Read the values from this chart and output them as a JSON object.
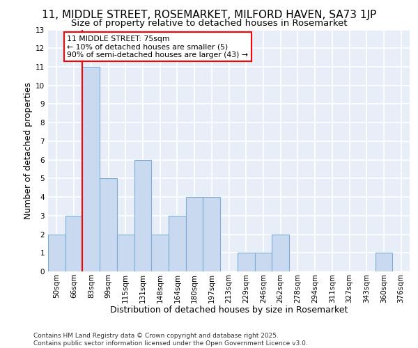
{
  "title_line1": "11, MIDDLE STREET, ROSEMARKET, MILFORD HAVEN, SA73 1JP",
  "title_line2": "Size of property relative to detached houses in Rosemarket",
  "xlabel": "Distribution of detached houses by size in Rosemarket",
  "ylabel": "Number of detached properties",
  "footnote": "Contains HM Land Registry data © Crown copyright and database right 2025.\nContains public sector information licensed under the Open Government Licence v3.0.",
  "bins": [
    "50sqm",
    "66sqm",
    "83sqm",
    "99sqm",
    "115sqm",
    "131sqm",
    "148sqm",
    "164sqm",
    "180sqm",
    "197sqm",
    "213sqm",
    "229sqm",
    "246sqm",
    "262sqm",
    "278sqm",
    "294sqm",
    "311sqm",
    "327sqm",
    "343sqm",
    "360sqm",
    "376sqm"
  ],
  "values": [
    2,
    3,
    11,
    5,
    2,
    6,
    2,
    3,
    4,
    4,
    0,
    1,
    1,
    2,
    0,
    0,
    0,
    0,
    0,
    1,
    0
  ],
  "bar_color": "#c8d9f0",
  "bar_edge_color": "#7aaed6",
  "red_line_x": 1.5,
  "annotation_text": "11 MIDDLE STREET: 75sqm\n← 10% of detached houses are smaller (5)\n90% of semi-detached houses are larger (43) →",
  "ylim": [
    0,
    13
  ],
  "yticks": [
    0,
    1,
    2,
    3,
    4,
    5,
    6,
    7,
    8,
    9,
    10,
    11,
    12,
    13
  ],
  "background_color": "#e8eef8",
  "grid_color": "#ffffff",
  "title_fontsize": 11,
  "subtitle_fontsize": 9.5,
  "axis_label_fontsize": 9,
  "tick_fontsize": 7.5,
  "footnote_fontsize": 6.5
}
